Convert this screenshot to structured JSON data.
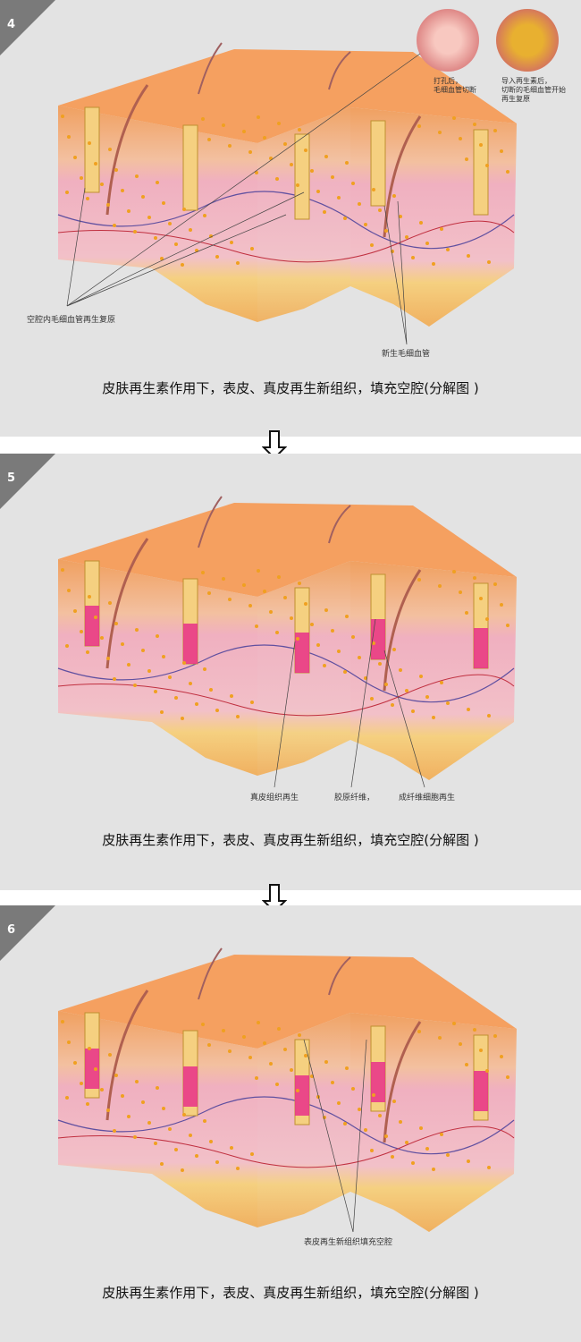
{
  "panels": [
    {
      "number": "4",
      "caption": "皮肤再生素作用下，表皮、真皮再生新组织，填充空腔(分解图 )",
      "labels": [
        "空腔内毛细血管再生复原",
        "新生毛细血管"
      ],
      "insets": [
        {
          "caption_line1": "打孔后，",
          "caption_line2": "毛细血管切断"
        },
        {
          "caption_line1": "导入再生素后，",
          "caption_line2": "切断的毛细血管开始",
          "caption_line3": "再生复原"
        }
      ]
    },
    {
      "number": "5",
      "caption": "皮肤再生素作用下，表皮、真皮再生新组织，填充空腔(分解图 )",
      "labels": [
        "真皮组织再生",
        "胶原纤维，",
        "成纤维细胞再生"
      ]
    },
    {
      "number": "6",
      "caption": "皮肤再生素作用下，表皮、真皮再生新组织，填充空腔(分解图 )",
      "labels": [
        "表皮再生新组织填充空腔"
      ]
    }
  ],
  "colors": {
    "panel_bg": "#e3e3e3",
    "skin_top": "#f5a060",
    "dermis": "#f0b0c0",
    "fat": "#f5d080",
    "regen": "#e8308a"
  },
  "icons": {
    "step_arrow": "arrow-down-outline-icon"
  }
}
